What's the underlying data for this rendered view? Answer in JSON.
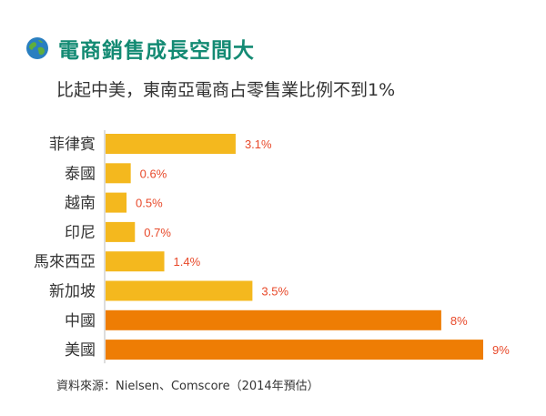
{
  "header": {
    "title": "電商銷售成長空間大",
    "subtitle": "比起中美，東南亞電商占零售業比例不到1%"
  },
  "footer": {
    "source": "資料來源：Nielsen、Comscore（2014年預估）"
  },
  "colors": {
    "title": "#138a73",
    "bar_sea": "#f4b81e",
    "bar_major": "#ee7d04",
    "value_label": "#e8492a",
    "category_label": "#333333",
    "axis": "#bbbbbb"
  },
  "chart_data": {
    "type": "bar",
    "orientation": "horizontal",
    "title": "比起中美，東南亞電商占零售業比例不到1%",
    "xlabel": "",
    "ylabel": "",
    "unit": "%",
    "xlim": [
      0,
      9
    ],
    "categories": [
      "菲律賓",
      "泰國",
      "越南",
      "印尼",
      "馬來西亞",
      "新加坡",
      "中國",
      "美國"
    ],
    "values": [
      3.1,
      0.6,
      0.5,
      0.7,
      1.4,
      3.5,
      8,
      9
    ],
    "value_labels": [
      "3.1%",
      "0.6%",
      "0.5%",
      "0.7%",
      "1.4%",
      "3.5%",
      "8%",
      "9%"
    ],
    "groups": [
      "sea",
      "sea",
      "sea",
      "sea",
      "sea",
      "sea",
      "major",
      "major"
    ]
  }
}
